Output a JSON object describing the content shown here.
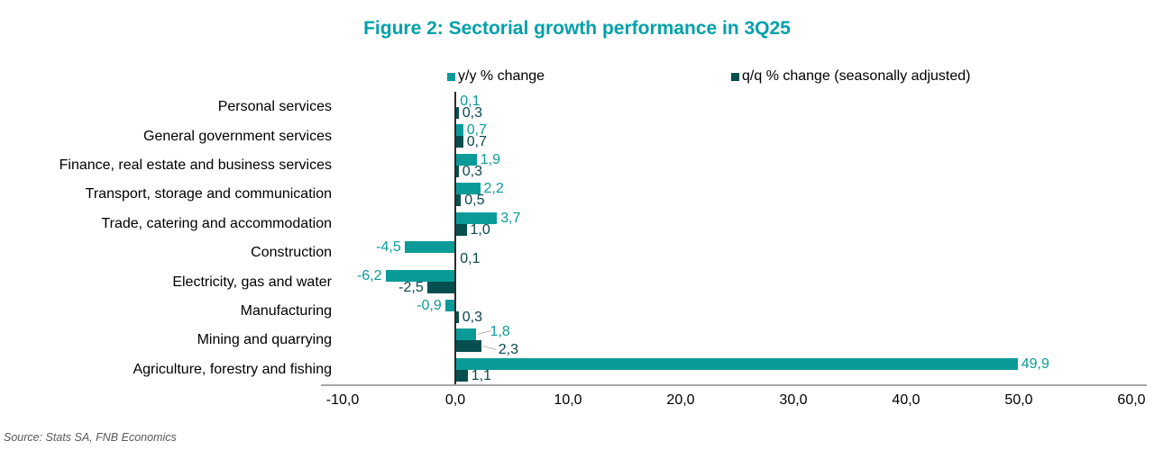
{
  "title": "Figure 2: Sectorial growth performance in 3Q25",
  "source_note": "Source: Stats SA, FNB Economics",
  "colors": {
    "title": "#00A1AA",
    "yy_bar": "#0A9B99",
    "yy_label": "#0A9B99",
    "qq_bar": "#064F4F",
    "qq_label": "#0C474D",
    "axis_line": "#2B2B2B",
    "baseline": "#A6A6A6",
    "source_text": "#595959",
    "leader_line": "#B7B7B7",
    "category_text": "#000000"
  },
  "legend": {
    "items": [
      {
        "label": "y/y % change",
        "color": "#0A9B99"
      },
      {
        "label": "q/q % change (seasonally adjusted)",
        "color": "#064F4F"
      }
    ]
  },
  "chart_data": {
    "type": "bar",
    "orientation": "horizontal",
    "title": "Figure 2: Sectorial growth performance in 3Q25",
    "decimal_separator": ",",
    "categories": [
      "Personal services",
      "General government services",
      "Finance, real estate and business services",
      "Transport, storage and communication",
      "Trade, catering and accommodation",
      "Construction",
      "Electricity, gas and water",
      "Manufacturing",
      "Mining and quarrying",
      "Agriculture, forestry and fishing"
    ],
    "series": [
      {
        "name": "y/y % change",
        "color": "#0A9B99",
        "values": [
          0.1,
          0.7,
          1.9,
          2.2,
          3.7,
          -4.5,
          -6.2,
          -0.9,
          1.8,
          49.9
        ]
      },
      {
        "name": "q/q % change (seasonally adjusted)",
        "color": "#064F4F",
        "values": [
          0.3,
          0.7,
          0.3,
          0.5,
          1.0,
          0.1,
          -2.5,
          0.3,
          2.3,
          1.1
        ]
      }
    ],
    "xlim": [
      -10,
      60
    ],
    "x_tick_values": [
      -10,
      0,
      10,
      20,
      30,
      40,
      50,
      60
    ],
    "x_tick_labels": [
      "-10,0",
      "0,0",
      "10,0",
      "20,0",
      "30,0",
      "40,0",
      "50,0",
      "60,0"
    ],
    "grid": false,
    "legend_position": "top",
    "value_labels": "outside-end",
    "callout_category_index": 8
  }
}
